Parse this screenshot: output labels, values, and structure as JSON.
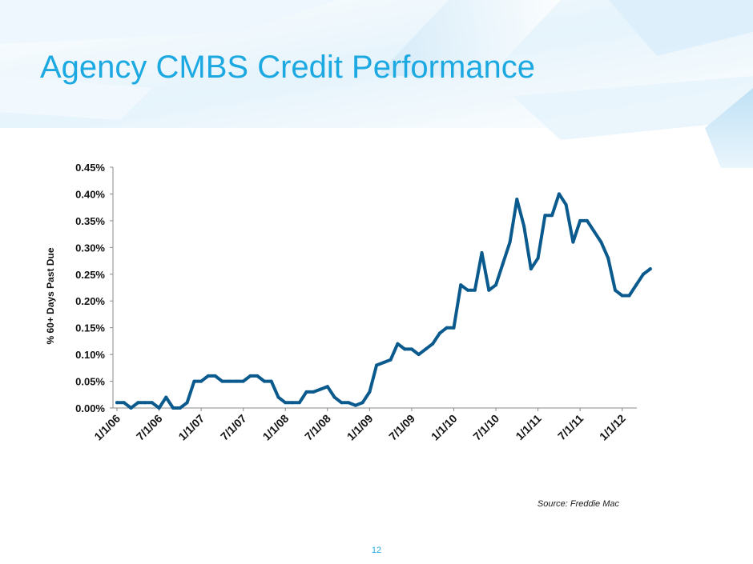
{
  "slide": {
    "title": "Agency CMBS Credit Performance",
    "source": "Source: Freddie Mac",
    "page_number": "12"
  },
  "colors": {
    "title": "#1ca9e1",
    "line": "#0b5a8e",
    "background_accent": "#d6ecf9"
  },
  "chart_data": {
    "type": "line",
    "title": "",
    "xlabel": "",
    "ylabel": "% 60+ Days Past Due",
    "y_tick_labels": [
      "0.00%",
      "0.05%",
      "0.10%",
      "0.15%",
      "0.20%",
      "0.25%",
      "0.30%",
      "0.35%",
      "0.40%",
      "0.45%"
    ],
    "ylim": [
      0,
      0.45
    ],
    "x_tick_labels": [
      "1/1/06",
      "7/1/06",
      "1/1/07",
      "7/1/07",
      "1/1/08",
      "7/1/08",
      "1/1/09",
      "7/1/09",
      "1/1/10",
      "7/1/10",
      "1/1/11",
      "7/1/11",
      "1/1/12"
    ],
    "grid": false,
    "series": [
      {
        "points": [
          [
            "2006-01",
            0.01
          ],
          [
            "2006-02",
            0.01
          ],
          [
            "2006-03",
            0.0
          ],
          [
            "2006-04",
            0.01
          ],
          [
            "2006-05",
            0.01
          ],
          [
            "2006-06",
            0.01
          ],
          [
            "2006-07",
            0.0
          ],
          [
            "2006-08",
            0.02
          ],
          [
            "2006-09",
            0.0
          ],
          [
            "2006-10",
            0.0
          ],
          [
            "2006-11",
            0.01
          ],
          [
            "2006-12",
            0.05
          ],
          [
            "2007-01",
            0.05
          ],
          [
            "2007-02",
            0.06
          ],
          [
            "2007-03",
            0.06
          ],
          [
            "2007-04",
            0.05
          ],
          [
            "2007-05",
            0.05
          ],
          [
            "2007-06",
            0.05
          ],
          [
            "2007-07",
            0.05
          ],
          [
            "2007-08",
            0.06
          ],
          [
            "2007-09",
            0.06
          ],
          [
            "2007-10",
            0.05
          ],
          [
            "2007-11",
            0.05
          ],
          [
            "2007-12",
            0.02
          ],
          [
            "2008-01",
            0.01
          ],
          [
            "2008-02",
            0.01
          ],
          [
            "2008-03",
            0.01
          ],
          [
            "2008-04",
            0.03
          ],
          [
            "2008-05",
            0.03
          ],
          [
            "2008-06",
            0.035
          ],
          [
            "2008-07",
            0.04
          ],
          [
            "2008-08",
            0.02
          ],
          [
            "2008-09",
            0.01
          ],
          [
            "2008-10",
            0.01
          ],
          [
            "2008-11",
            0.005
          ],
          [
            "2008-12",
            0.01
          ],
          [
            "2009-01",
            0.03
          ],
          [
            "2009-02",
            0.08
          ],
          [
            "2009-03",
            0.085
          ],
          [
            "2009-04",
            0.09
          ],
          [
            "2009-05",
            0.12
          ],
          [
            "2009-06",
            0.11
          ],
          [
            "2009-07",
            0.11
          ],
          [
            "2009-08",
            0.1
          ],
          [
            "2009-09",
            0.11
          ],
          [
            "2009-10",
            0.12
          ],
          [
            "2009-11",
            0.14
          ],
          [
            "2009-12",
            0.15
          ],
          [
            "2010-01",
            0.15
          ],
          [
            "2010-02",
            0.23
          ],
          [
            "2010-03",
            0.22
          ],
          [
            "2010-04",
            0.22
          ],
          [
            "2010-05",
            0.29
          ],
          [
            "2010-06",
            0.22
          ],
          [
            "2010-07",
            0.23
          ],
          [
            "2010-08",
            0.27
          ],
          [
            "2010-09",
            0.31
          ],
          [
            "2010-10",
            0.39
          ],
          [
            "2010-11",
            0.34
          ],
          [
            "2010-12",
            0.26
          ],
          [
            "2011-01",
            0.28
          ],
          [
            "2011-02",
            0.36
          ],
          [
            "2011-03",
            0.36
          ],
          [
            "2011-04",
            0.4
          ],
          [
            "2011-05",
            0.38
          ],
          [
            "2011-06",
            0.31
          ],
          [
            "2011-07",
            0.35
          ],
          [
            "2011-08",
            0.35
          ],
          [
            "2011-09",
            0.33
          ],
          [
            "2011-10",
            0.31
          ],
          [
            "2011-11",
            0.28
          ],
          [
            "2011-12",
            0.22
          ],
          [
            "2012-01",
            0.21
          ],
          [
            "2012-02",
            0.21
          ],
          [
            "2012-03",
            0.23
          ],
          [
            "2012-04",
            0.25
          ],
          [
            "2012-05",
            0.26
          ]
        ]
      }
    ]
  }
}
